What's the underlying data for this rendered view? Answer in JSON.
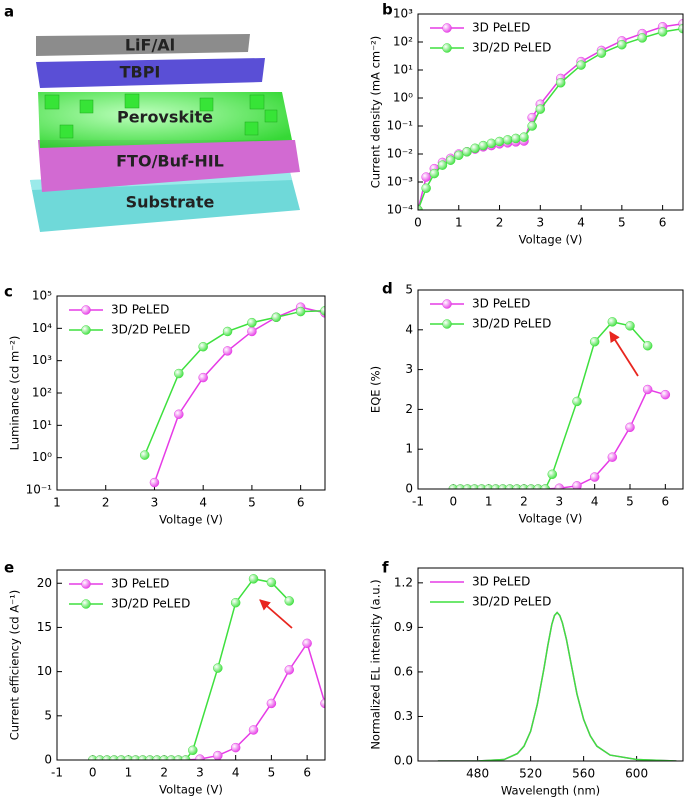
{
  "device_diagram": {
    "panel_label": "a",
    "layers": [
      "LiF/Al",
      "TBPI",
      "Perovskite",
      "FTO/Buf-HIL",
      "Substrate"
    ]
  },
  "chart_data": [
    {
      "type": "line",
      "panel_label": "b",
      "xlabel": "Voltage (V)",
      "ylabel": "Current density (mA cm⁻²)",
      "log_y": true,
      "markers": true,
      "legend": "upper left",
      "xlim": [
        0,
        6.5
      ],
      "xticks": [
        0,
        1,
        2,
        3,
        4,
        5,
        6
      ],
      "ylim": [
        0.0001,
        1000
      ],
      "yticks": [
        {
          "value": 0.0001,
          "label": "10⁻⁴"
        },
        {
          "value": 0.001,
          "label": "10⁻³"
        },
        {
          "value": 0.01,
          "label": "10⁻²"
        },
        {
          "value": 0.1,
          "label": "10⁻¹"
        },
        {
          "value": 1,
          "label": "10⁰"
        },
        {
          "value": 10,
          "label": "10¹"
        },
        {
          "value": 100,
          "label": "10²"
        },
        {
          "value": 1000,
          "label": "10³"
        }
      ],
      "x": [
        0,
        0.2,
        0.4,
        0.6,
        0.8,
        1,
        1.2,
        1.4,
        1.6,
        1.8,
        2,
        2.2,
        2.4,
        2.6,
        2.8,
        3,
        3.5,
        4,
        4.5,
        5,
        5.5,
        6,
        6.5
      ],
      "series": [
        {
          "name": "3D PeLED",
          "color": "#e63be6",
          "values": [
            0.0001,
            0.0015,
            0.003,
            0.005,
            0.007,
            0.01,
            0.012,
            0.015,
            0.018,
            0.02,
            0.023,
            0.025,
            0.027,
            0.029,
            0.2,
            0.6,
            5,
            20,
            50,
            110,
            200,
            350,
            450
          ]
        },
        {
          "name": "3D/2D PeLED",
          "color": "#3ee03e",
          "values": [
            0.0001,
            0.0006,
            0.002,
            0.004,
            0.006,
            0.009,
            0.012,
            0.016,
            0.02,
            0.024,
            0.028,
            0.032,
            0.036,
            0.04,
            0.1,
            0.4,
            3.5,
            15,
            40,
            80,
            140,
            230,
            300
          ]
        }
      ]
    },
    {
      "type": "line",
      "panel_label": "c",
      "xlabel": "Voltage (V)",
      "ylabel": "Luminance (cd m⁻²)",
      "log_y": true,
      "markers": true,
      "legend": "upper left",
      "xlim": [
        1,
        6.5
      ],
      "xticks": [
        1,
        2,
        3,
        4,
        5,
        6
      ],
      "ylim": [
        0.1,
        100000
      ],
      "yticks": [
        {
          "value": 0.1,
          "label": "10⁻¹"
        },
        {
          "value": 1,
          "label": "10⁰"
        },
        {
          "value": 10,
          "label": "10¹"
        },
        {
          "value": 100,
          "label": "10²"
        },
        {
          "value": 1000,
          "label": "10³"
        },
        {
          "value": 10000,
          "label": "10⁴"
        },
        {
          "value": 100000,
          "label": "10⁵"
        }
      ],
      "series": [
        {
          "name": "3D PeLED",
          "color": "#e63be6",
          "x": [
            3,
            3.5,
            4,
            4.5,
            5,
            5.5,
            6,
            6.5
          ],
          "values": [
            0.17,
            22,
            300,
            2000,
            8000,
            22000,
            45000,
            30000
          ]
        },
        {
          "name": "3D/2D PeLED",
          "color": "#3ee03e",
          "x": [
            2.8,
            3.5,
            4,
            4.5,
            5,
            5.5,
            6,
            6.5
          ],
          "values": [
            1.2,
            400,
            2700,
            8000,
            15000,
            22000,
            33000,
            35000
          ]
        }
      ]
    },
    {
      "type": "line",
      "panel_label": "d",
      "xlabel": "Voltage (V)",
      "ylabel": "EQE (%)",
      "markers": true,
      "legend": "upper left",
      "xlim": [
        -1,
        6.5
      ],
      "xticks": [
        -1,
        0,
        1,
        2,
        3,
        4,
        5,
        6
      ],
      "ylim": [
        0,
        5
      ],
      "yticks": [
        0,
        1,
        2,
        3,
        4,
        5
      ],
      "series": [
        {
          "name": "3D PeLED",
          "color": "#e63be6",
          "x": [
            0,
            0.2,
            0.4,
            0.6,
            0.8,
            1,
            1.2,
            1.4,
            1.6,
            1.8,
            2,
            2.2,
            2.4,
            2.6,
            3,
            3.5,
            4,
            4.5,
            5,
            5.5,
            6
          ],
          "values": [
            0,
            0,
            0,
            0,
            0,
            0,
            0,
            0,
            0,
            0,
            0,
            0,
            0,
            0,
            0.02,
            0.08,
            0.3,
            0.8,
            1.55,
            2.5,
            2.37
          ]
        },
        {
          "name": "3D/2D PeLED",
          "color": "#3ee03e",
          "x": [
            0,
            0.2,
            0.4,
            0.6,
            0.8,
            1,
            1.2,
            1.4,
            1.6,
            1.8,
            2,
            2.2,
            2.4,
            2.6,
            2.8,
            3.5,
            4,
            4.5,
            5,
            5.5
          ],
          "values": [
            0,
            0,
            0,
            0,
            0,
            0,
            0,
            0,
            0,
            0,
            0,
            0,
            0,
            0,
            0.37,
            2.2,
            3.7,
            4.2,
            4.1,
            3.6
          ]
        }
      ]
    },
    {
      "type": "line",
      "panel_label": "e",
      "xlabel": "Voltage (V)",
      "ylabel": "Current efficiency (cd A⁻¹)",
      "markers": true,
      "legend": "upper left",
      "xlim": [
        -1,
        6.5
      ],
      "xticks": [
        -1,
        0,
        1,
        2,
        3,
        4,
        5,
        6
      ],
      "ylim": [
        0,
        21.5
      ],
      "yticks": [
        0,
        5,
        10,
        15,
        20
      ],
      "series": [
        {
          "name": "3D PeLED",
          "color": "#e63be6",
          "x": [
            0,
            0.2,
            0.4,
            0.6,
            0.8,
            1,
            1.2,
            1.4,
            1.6,
            1.8,
            2,
            2.2,
            2.4,
            2.6,
            3,
            3.5,
            4,
            4.5,
            5,
            5.5,
            6,
            6.5
          ],
          "values": [
            0,
            0,
            0,
            0,
            0,
            0,
            0,
            0,
            0,
            0,
            0,
            0,
            0,
            0,
            0.1,
            0.5,
            1.4,
            3.4,
            6.4,
            10.2,
            13.2,
            6.4
          ]
        },
        {
          "name": "3D/2D PeLED",
          "color": "#3ee03e",
          "x": [
            0,
            0.2,
            0.4,
            0.6,
            0.8,
            1,
            1.2,
            1.4,
            1.6,
            1.8,
            2,
            2.2,
            2.4,
            2.6,
            2.8,
            3.5,
            4,
            4.5,
            5,
            5.5
          ],
          "values": [
            0,
            0,
            0,
            0,
            0,
            0,
            0,
            0,
            0,
            0,
            0,
            0,
            0,
            0,
            1.1,
            10.4,
            17.8,
            20.5,
            20.1,
            18
          ]
        }
      ]
    },
    {
      "type": "line",
      "panel_label": "f",
      "xlabel": "Wavelength (nm)",
      "ylabel": "Normalized EL intensity (a.u.)",
      "markers": false,
      "legend": "upper left",
      "xlim": [
        435,
        635
      ],
      "xticks": [
        480,
        520,
        560,
        600
      ],
      "ylim": [
        0,
        1.3
      ],
      "yticks": [
        {
          "value": 0,
          "label": "0.0"
        },
        0.3,
        0.6,
        0.9,
        1.2
      ],
      "x": [
        450,
        480,
        500,
        510,
        515,
        520,
        525,
        530,
        533,
        536,
        538,
        540,
        542,
        544,
        547,
        550,
        555,
        560,
        565,
        570,
        580,
        600,
        630
      ],
      "series": [
        {
          "name": "3D PeLED",
          "color": "#e63be6",
          "values": [
            0,
            0,
            0.01,
            0.05,
            0.1,
            0.2,
            0.38,
            0.62,
            0.78,
            0.92,
            0.98,
            1,
            0.98,
            0.93,
            0.82,
            0.68,
            0.45,
            0.28,
            0.17,
            0.1,
            0.04,
            0.01,
            0
          ]
        },
        {
          "name": "3D/2D PeLED",
          "color": "#3ee03e",
          "values": [
            0,
            0,
            0.01,
            0.05,
            0.1,
            0.2,
            0.38,
            0.62,
            0.78,
            0.92,
            0.98,
            1,
            0.98,
            0.93,
            0.82,
            0.68,
            0.45,
            0.28,
            0.17,
            0.1,
            0.04,
            0.01,
            0
          ]
        }
      ]
    }
  ]
}
